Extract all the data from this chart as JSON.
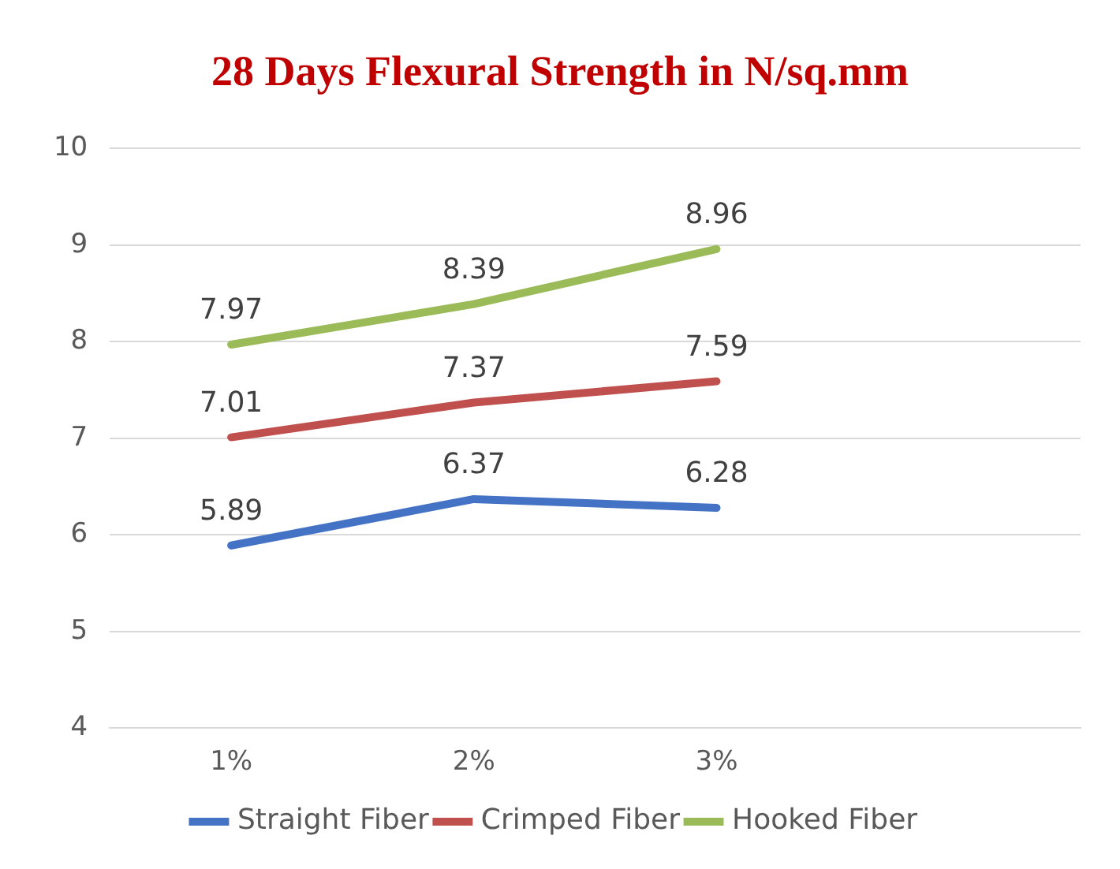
{
  "chart_data": {
    "type": "line",
    "title": "28 Days Flexural Strength in N/sq.mm",
    "categories": [
      "1%",
      "2%",
      "3%",
      null
    ],
    "series": [
      {
        "name": "Straight Fiber",
        "color": "#4472c4",
        "values": [
          5.89,
          6.37,
          6.28,
          null
        ]
      },
      {
        "name": "Crimped Fiber",
        "color": "#c0504d",
        "values": [
          7.01,
          7.37,
          7.59,
          null
        ]
      },
      {
        "name": "Hooked Fiber",
        "color": "#9bbb59",
        "values": [
          7.97,
          8.39,
          8.96,
          null
        ]
      }
    ],
    "ylim": [
      4,
      10
    ],
    "yticks": [
      4,
      5,
      6,
      7,
      8,
      9,
      10
    ],
    "grid": "y",
    "legend": "bottom",
    "marker": "none",
    "line_style": "solid",
    "data_labels": true
  }
}
